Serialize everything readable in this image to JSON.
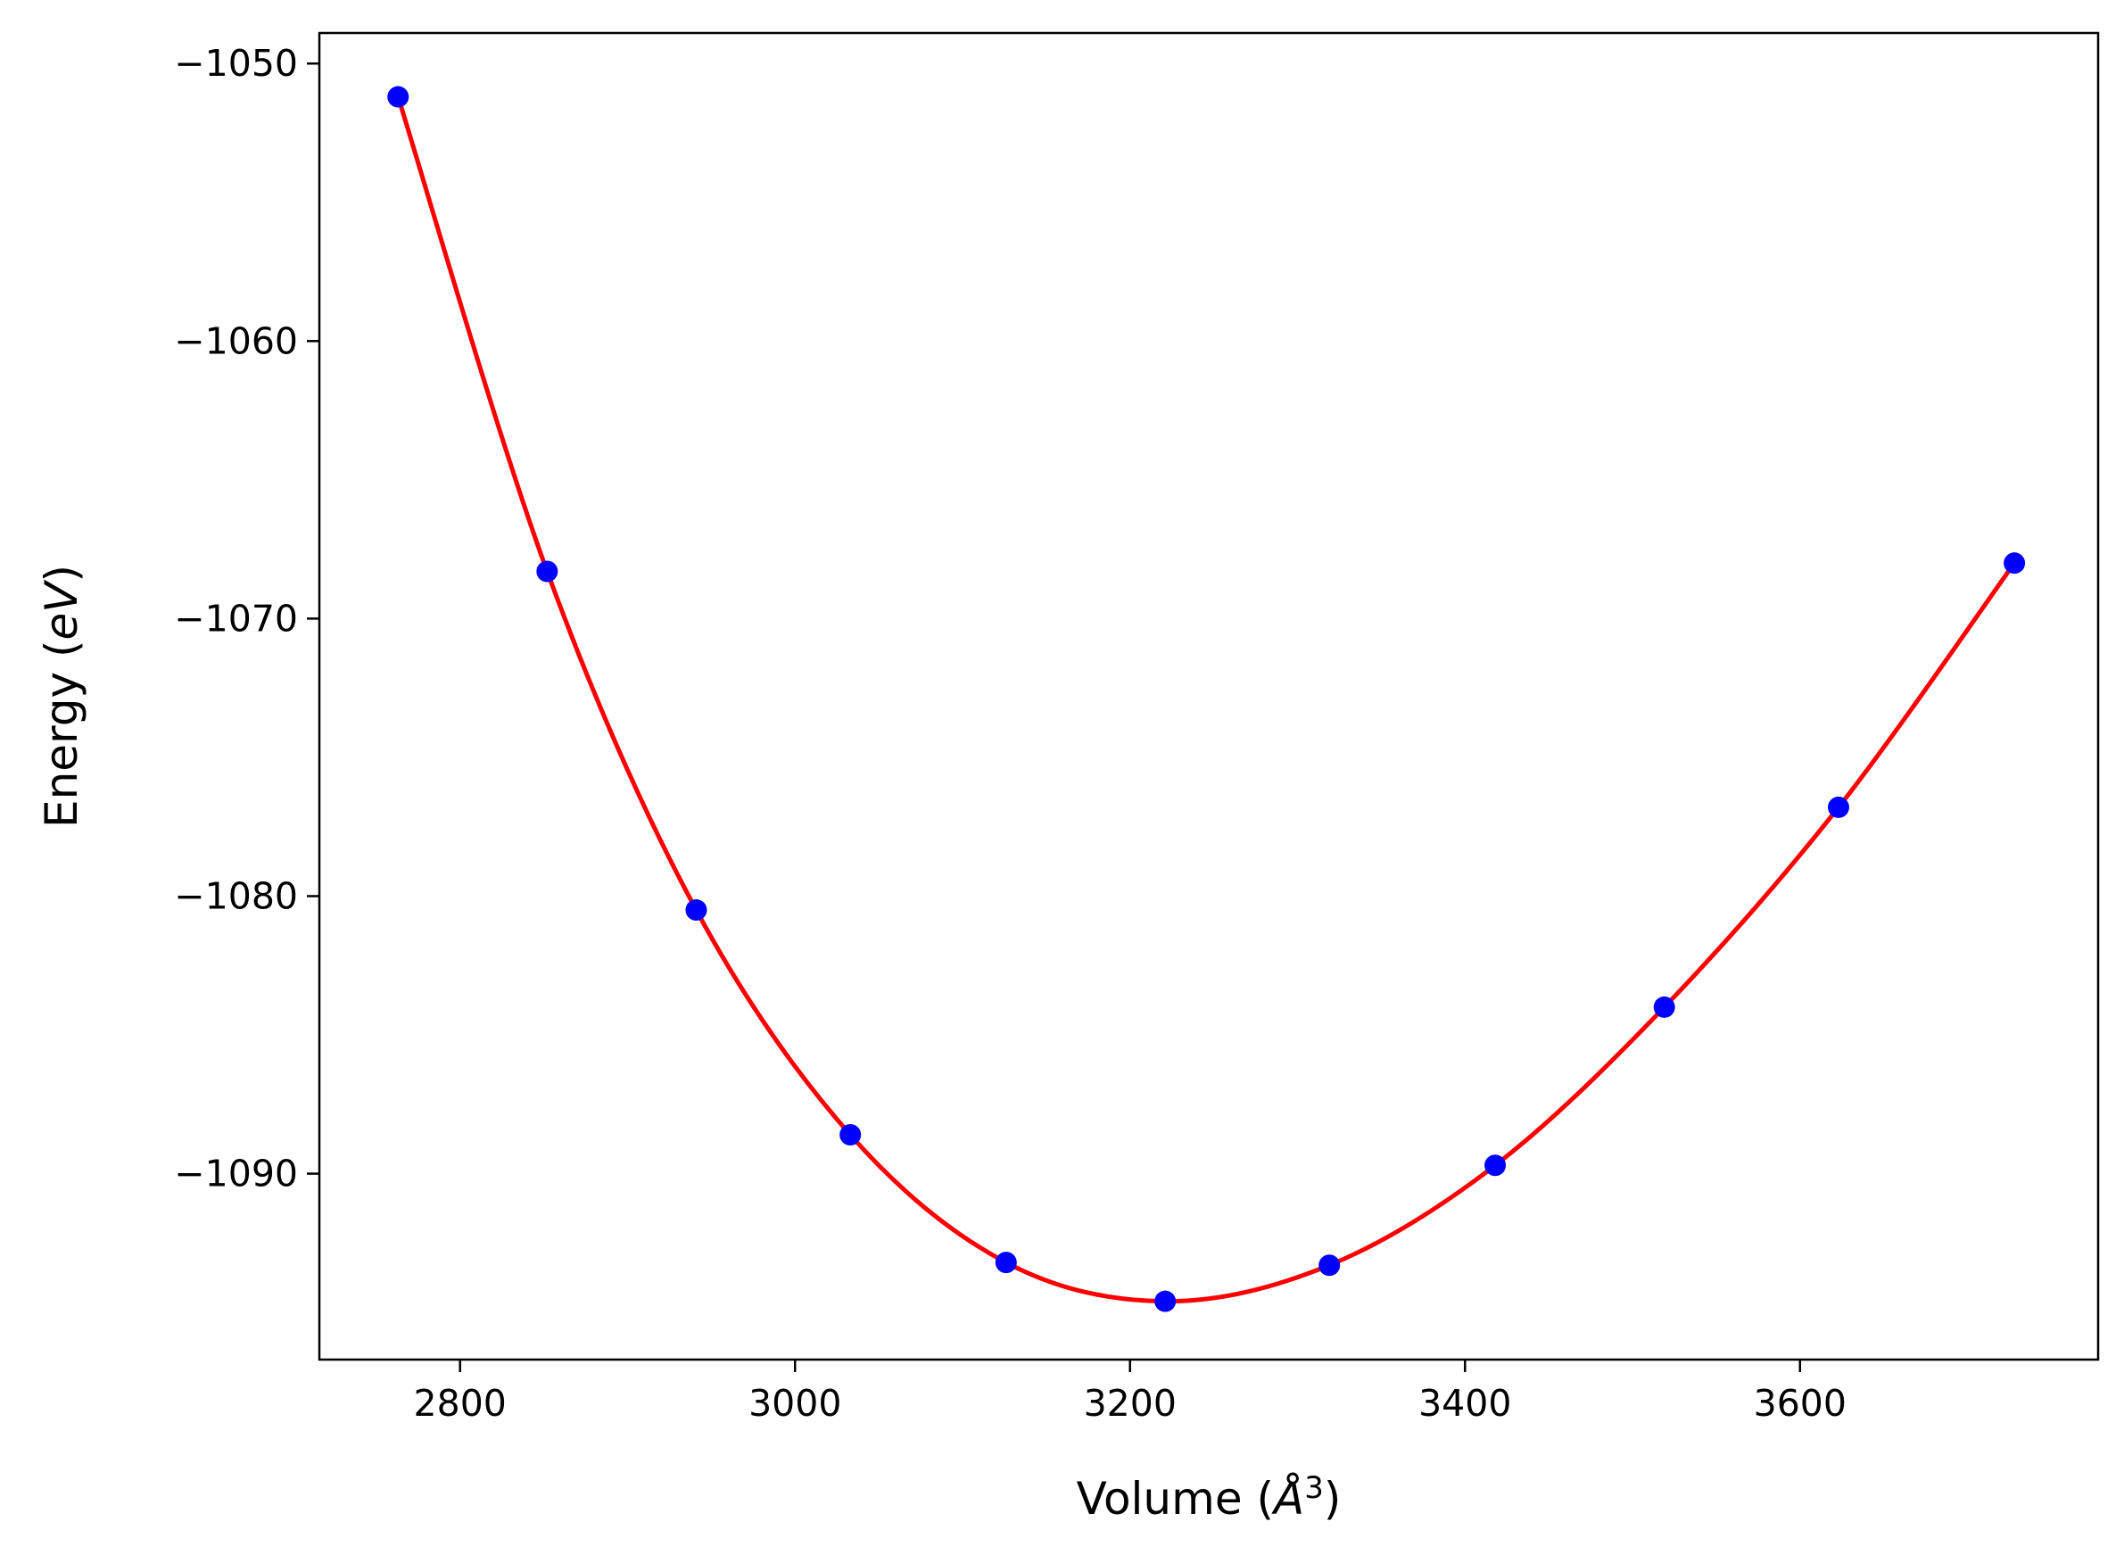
{
  "chart_data": {
    "type": "scatter",
    "xlabel_parts": {
      "prefix": "Volume (",
      "italic": "Å",
      "sup": "3",
      "suffix": ")"
    },
    "ylabel_parts": {
      "prefix": "Energy (",
      "italic": "eV",
      "suffix": ")"
    },
    "xlim": [
      2716,
      3778
    ],
    "ylim": [
      -1096.7,
      -1048.9
    ],
    "xticks": [
      2800,
      3000,
      3200,
      3400,
      3600
    ],
    "xtick_labels": [
      "2800",
      "3000",
      "3200",
      "3400",
      "3600"
    ],
    "yticks": [
      -1050,
      -1060,
      -1070,
      -1080,
      -1090
    ],
    "ytick_labels": [
      "−1050",
      "−1060",
      "−1070",
      "−1080",
      "−1090"
    ],
    "grid": false,
    "series": [
      {
        "kind": "points",
        "color": "#0000ff",
        "x": [
          2763,
          2852,
          2941,
          3033,
          3126,
          3221,
          3319,
          3418,
          3519,
          3623,
          3728
        ],
        "y": [
          -1051.2,
          -1068.3,
          -1080.5,
          -1088.6,
          -1093.2,
          -1094.6,
          -1093.3,
          -1089.7,
          -1084.0,
          -1076.8,
          -1068.0
        ]
      },
      {
        "kind": "fit-line",
        "color": "#ff0000",
        "x": [
          2763,
          2852,
          2941,
          3033,
          3126,
          3221,
          3319,
          3418,
          3519,
          3623,
          3728
        ],
        "y": [
          -1051.2,
          -1068.3,
          -1080.5,
          -1088.6,
          -1093.2,
          -1094.6,
          -1093.3,
          -1089.7,
          -1084.0,
          -1076.8,
          -1068.0
        ]
      }
    ]
  }
}
